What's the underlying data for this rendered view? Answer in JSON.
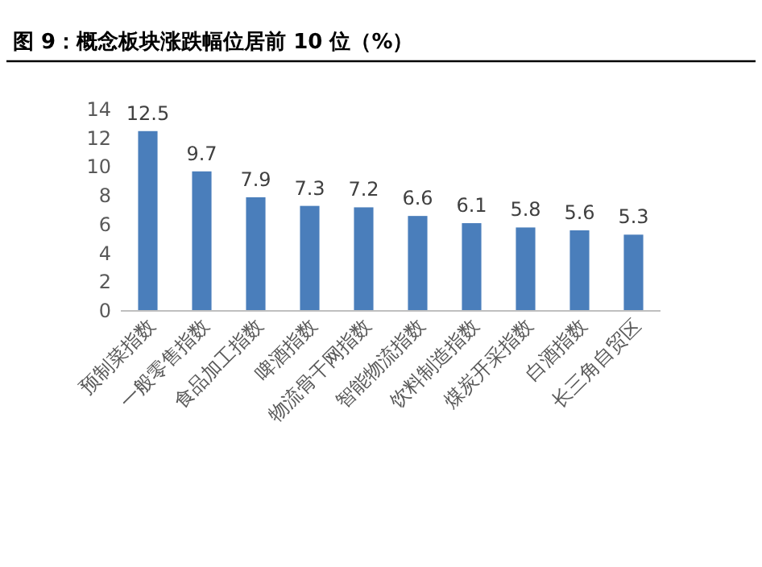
{
  "chart_data": {
    "type": "bar",
    "title": "图 9：概念板块涨跌幅位居前 10 位（%）",
    "categories": [
      "预制菜指数",
      "一般零售指数",
      "食品加工指数",
      "啤酒指数",
      "物流骨干网指数",
      "智能物流指数",
      "饮料制造指数",
      "煤炭开采指数",
      "白酒指数",
      "长三角自贸区"
    ],
    "values": [
      12.5,
      9.7,
      7.9,
      7.3,
      7.2,
      6.6,
      6.1,
      5.8,
      5.6,
      5.3
    ],
    "color": "#4a7ebb",
    "ylim": [
      0,
      14
    ],
    "yticks": [
      0,
      2,
      4,
      6,
      8,
      10,
      12,
      14
    ],
    "data_labels": true
  }
}
